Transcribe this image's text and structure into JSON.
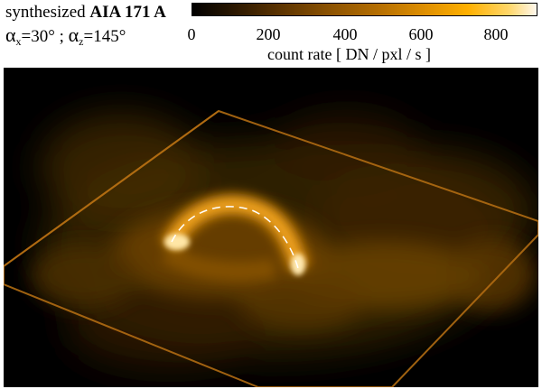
{
  "title": {
    "prefix": "synthesized",
    "bold": "AIA 171 A",
    "angles_x_label": "x",
    "angles_x_value": "=30° ;",
    "angles_z_label": "z",
    "angles_z_value": "=145°"
  },
  "colorbar": {
    "ticks": [
      "0",
      "200",
      "400",
      "600",
      "800"
    ],
    "label": "count rate  [ DN / pxl / s ]",
    "colors": [
      "#000000",
      "#5a3200",
      "#b87000",
      "#ffb000",
      "#fff8ee"
    ]
  }
}
